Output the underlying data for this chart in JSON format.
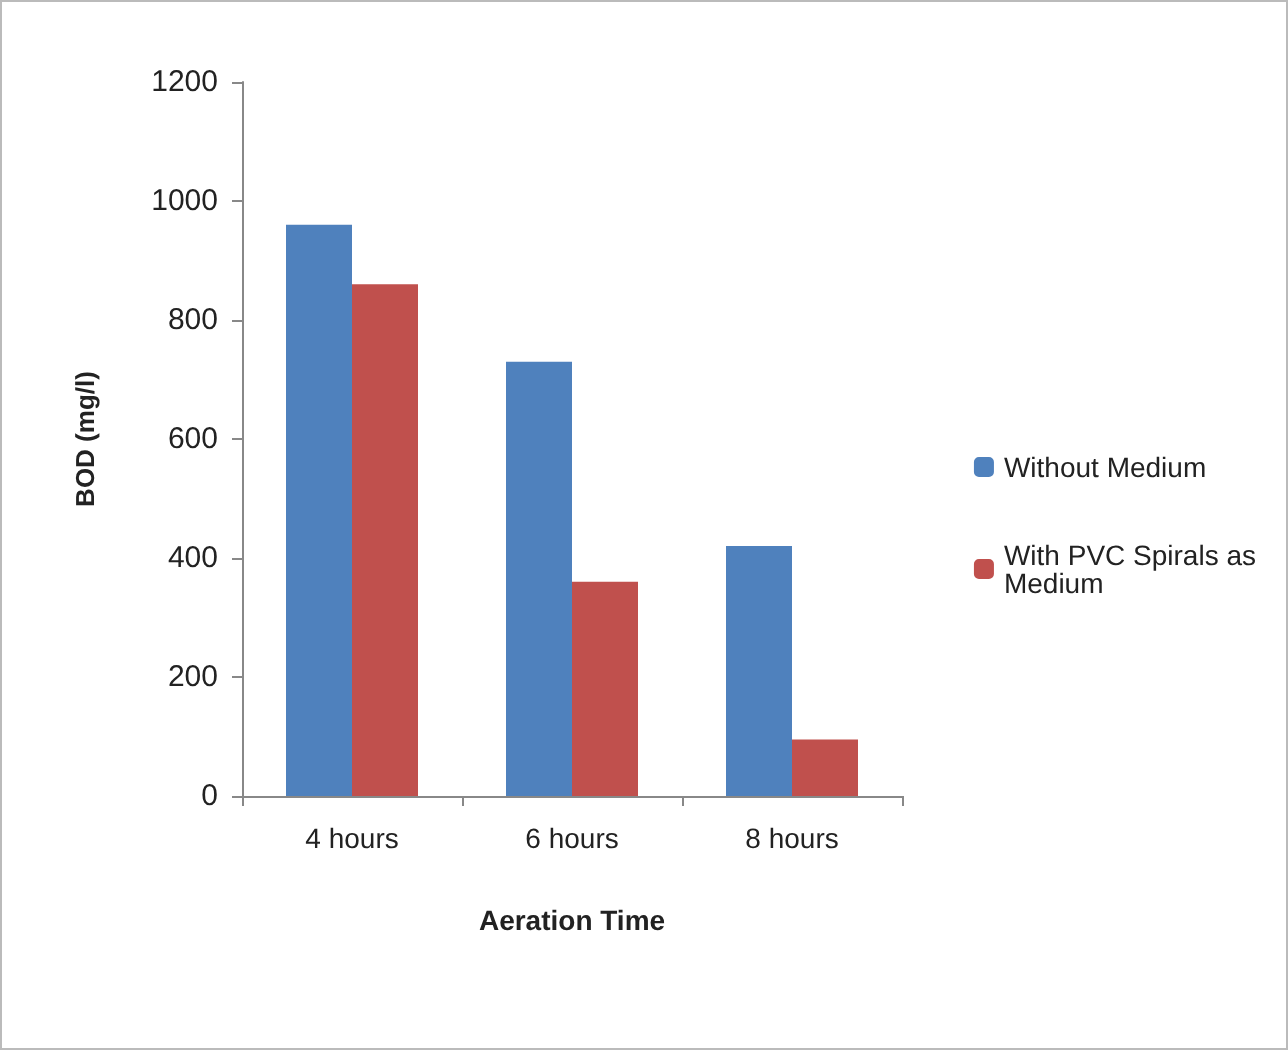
{
  "chart_data": {
    "type": "bar",
    "xlabel": "Aeration Time",
    "ylabel": "BOD (mg/l)",
    "categories": [
      "4 hours",
      "6 hours",
      "8 hours"
    ],
    "series": [
      {
        "name": "Without Medium",
        "color": "#4f81bd",
        "values": [
          960,
          730,
          420
        ]
      },
      {
        "name": "With PVC Spirals as Medium",
        "color": "#c0504d",
        "values": [
          860,
          360,
          95
        ]
      }
    ],
    "ylim": [
      0,
      1200
    ],
    "yticks": [
      0,
      200,
      400,
      600,
      800,
      1000,
      1200
    ],
    "grid": false,
    "legend": "right"
  }
}
